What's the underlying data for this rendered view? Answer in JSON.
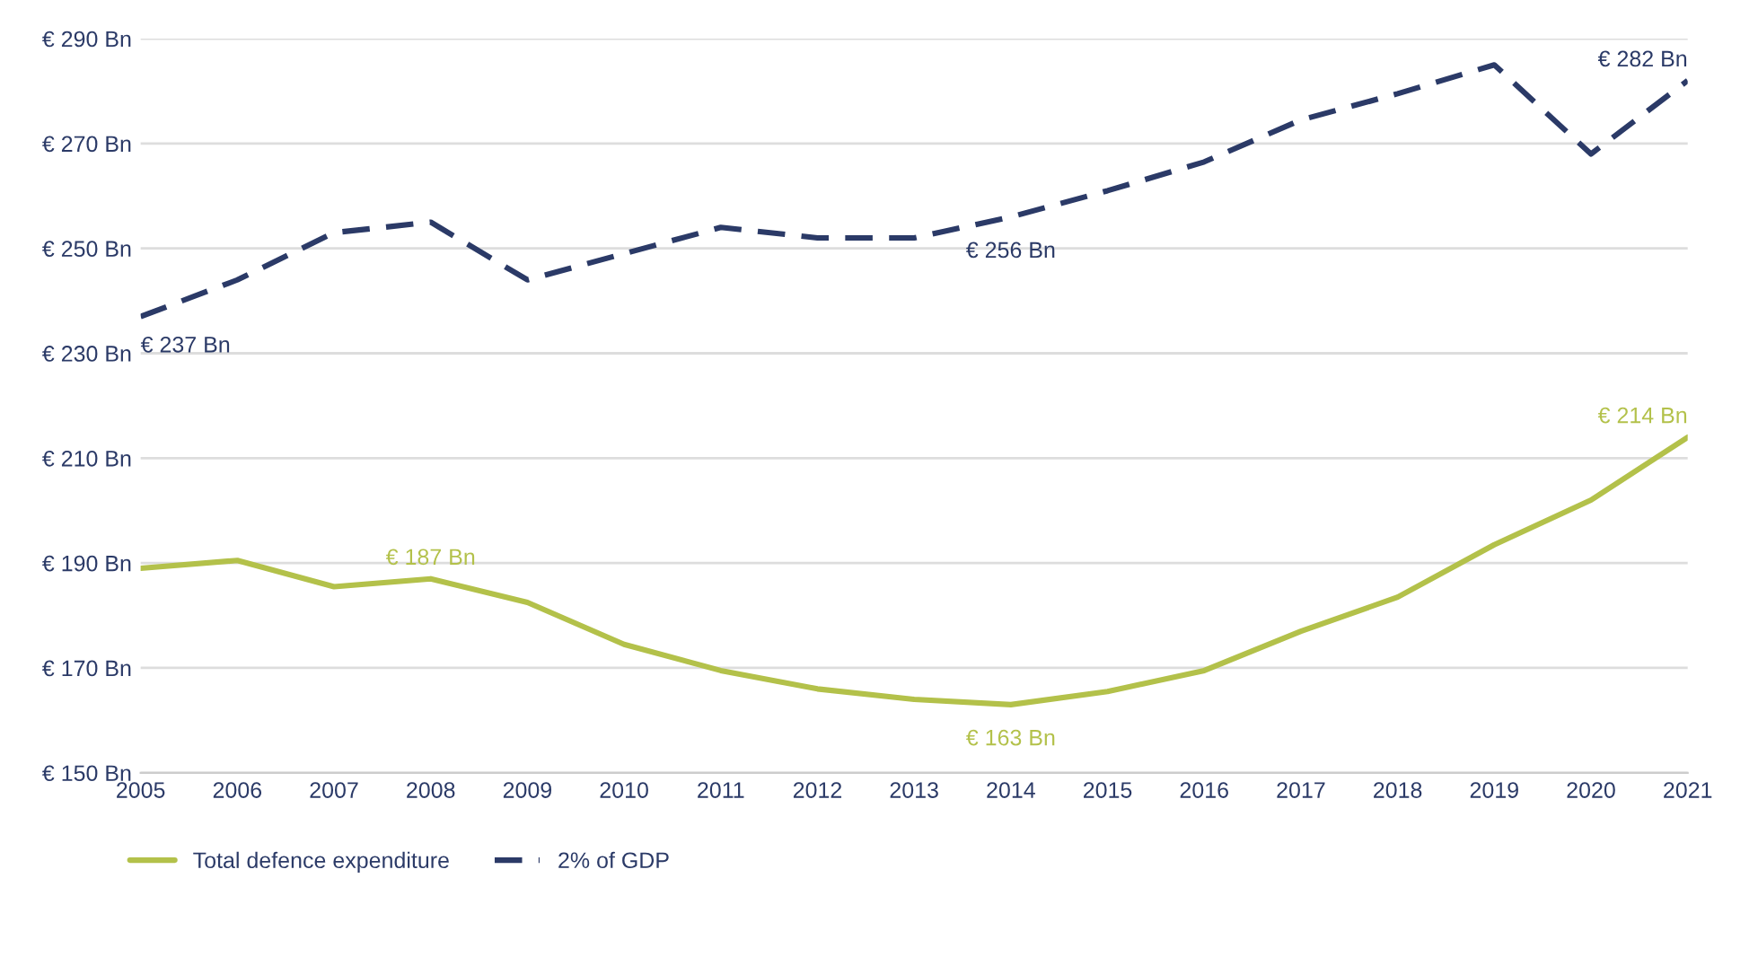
{
  "chart_data": {
    "type": "line",
    "x": [
      2005,
      2006,
      2007,
      2008,
      2009,
      2010,
      2011,
      2012,
      2013,
      2014,
      2015,
      2016,
      2017,
      2018,
      2019,
      2020,
      2021
    ],
    "series": [
      {
        "name": "Total defence expenditure",
        "color": "#b3c14a",
        "line_style": "solid",
        "values": [
          189,
          190.5,
          185.5,
          187,
          182.5,
          174.5,
          169.5,
          166,
          164,
          163,
          165.5,
          169.5,
          177,
          183.5,
          193.5,
          202,
          214
        ]
      },
      {
        "name": "2% of GDP",
        "color": "#2b3a67",
        "line_style": "dashed",
        "values": [
          237,
          244,
          253,
          255,
          244,
          249,
          254,
          252,
          252,
          256,
          261,
          266.5,
          274.5,
          279.5,
          285,
          268,
          282
        ]
      }
    ],
    "xlim": [
      2005,
      2021
    ],
    "xticks": [
      2005,
      2006,
      2007,
      2008,
      2009,
      2010,
      2011,
      2012,
      2013,
      2014,
      2015,
      2016,
      2017,
      2018,
      2019,
      2020,
      2021
    ],
    "ylim": [
      150,
      290
    ],
    "yticks": [
      {
        "value": 150,
        "label": "€ 150 Bn"
      },
      {
        "value": 170,
        "label": "€ 170 Bn"
      },
      {
        "value": 190,
        "label": "€ 190 Bn"
      },
      {
        "value": 210,
        "label": "€ 210 Bn"
      },
      {
        "value": 230,
        "label": "€ 230 Bn"
      },
      {
        "value": 250,
        "label": "€ 250 Bn"
      },
      {
        "value": 270,
        "label": "€ 270 Bn"
      },
      {
        "value": 290,
        "label": "€ 290 Bn"
      }
    ],
    "annotations": [
      {
        "text": "€ 237 Bn",
        "x": 2005,
        "y": 237
      },
      {
        "text": "€ 256 Bn",
        "x": 2014,
        "y": 256
      },
      {
        "text": "€ 282 Bn",
        "x": 2021,
        "y": 282
      },
      {
        "text": "€ 187 Bn",
        "x": 2008,
        "y": 187
      },
      {
        "text": "€ 163 Bn",
        "x": 2014,
        "y": 163
      },
      {
        "text": "€ 214 Bn",
        "x": 2021,
        "y": 214
      }
    ],
    "grid": "y",
    "legend": "bottom"
  }
}
